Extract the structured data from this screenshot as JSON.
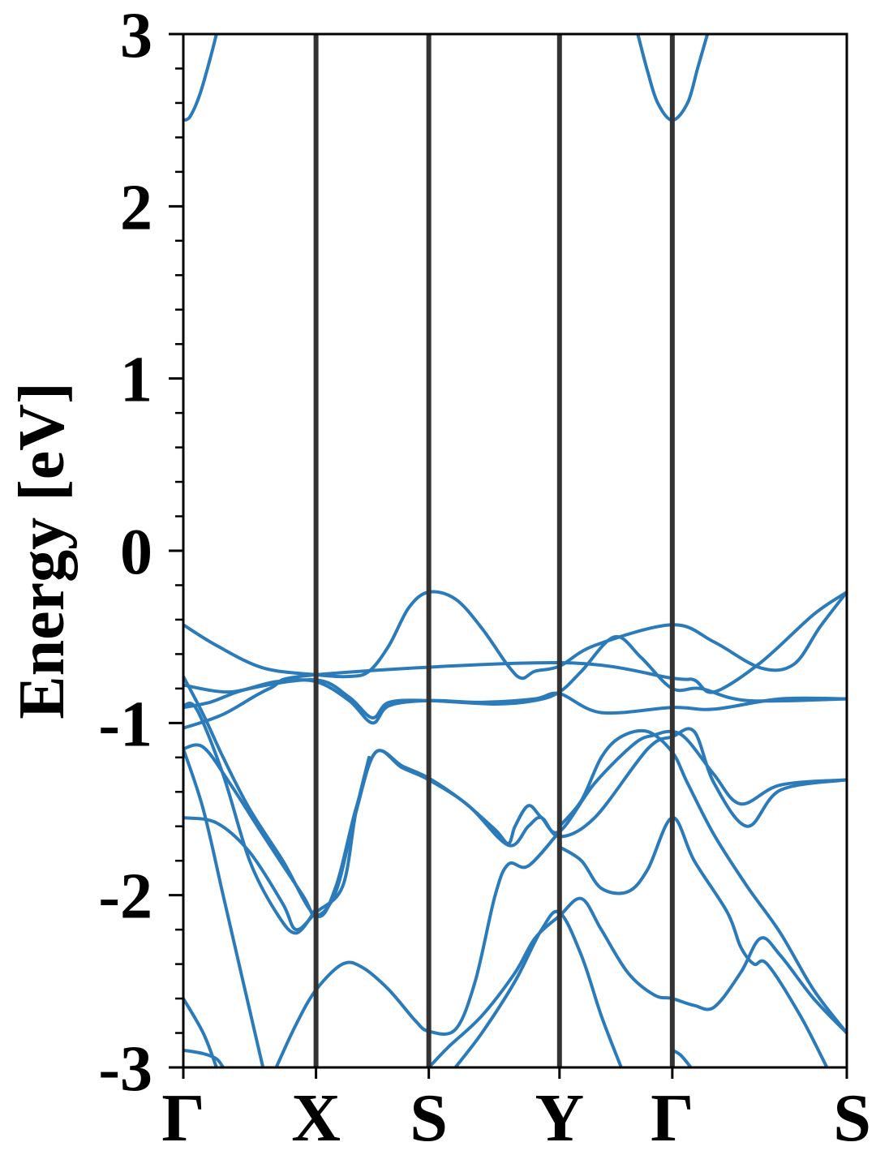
{
  "chart_data": {
    "type": "line",
    "title": "",
    "xlabel": "",
    "ylabel": "Energy [eV]",
    "ylim": [
      -3,
      3
    ],
    "y_ticks": [
      "3",
      "2",
      "1",
      "0",
      "-1",
      "-2",
      "-3"
    ],
    "high_symmetry_points": [
      {
        "label": "Γ",
        "x": 0.0
      },
      {
        "label": "X",
        "x": 0.2
      },
      {
        "label": "S",
        "x": 0.37
      },
      {
        "label": "Y",
        "x": 0.567
      },
      {
        "label": "Γ",
        "x": 0.737
      },
      {
        "label": "S",
        "x": 1.0
      }
    ],
    "line_color": "#2b7bba",
    "separator_color": "#333333",
    "grid": false,
    "series": [
      {
        "values": [
          [
            0.0,
            2.5
          ],
          [
            0.01,
            2.52
          ],
          [
            0.025,
            2.65
          ],
          [
            0.04,
            2.85
          ],
          [
            0.05,
            3.0
          ]
        ]
      },
      {
        "values": [
          [
            0.685,
            3.0
          ],
          [
            0.7,
            2.78
          ],
          [
            0.715,
            2.6
          ],
          [
            0.737,
            2.5
          ],
          [
            0.76,
            2.6
          ],
          [
            0.775,
            2.8
          ],
          [
            0.79,
            3.0
          ]
        ]
      },
      {
        "values": [
          [
            0.0,
            -0.43
          ],
          [
            0.05,
            -0.55
          ],
          [
            0.12,
            -0.68
          ],
          [
            0.2,
            -0.72
          ],
          [
            0.25,
            -0.73
          ],
          [
            0.28,
            -0.7
          ],
          [
            0.31,
            -0.55
          ],
          [
            0.34,
            -0.33
          ],
          [
            0.37,
            -0.24
          ],
          [
            0.41,
            -0.28
          ],
          [
            0.45,
            -0.45
          ],
          [
            0.49,
            -0.67
          ],
          [
            0.51,
            -0.74
          ],
          [
            0.53,
            -0.7
          ],
          [
            0.567,
            -0.67
          ],
          [
            0.62,
            -0.55
          ],
          [
            0.737,
            -0.43
          ],
          [
            0.8,
            -0.53
          ],
          [
            0.87,
            -0.68
          ],
          [
            0.92,
            -0.66
          ],
          [
            0.96,
            -0.44
          ],
          [
            1.0,
            -0.24
          ]
        ]
      },
      {
        "values": [
          [
            0.0,
            -0.78
          ],
          [
            0.07,
            -0.82
          ],
          [
            0.14,
            -0.76
          ],
          [
            0.2,
            -0.76
          ],
          [
            0.25,
            -0.87
          ],
          [
            0.285,
            -1.0
          ],
          [
            0.31,
            -0.9
          ],
          [
            0.37,
            -0.87
          ],
          [
            0.45,
            -0.88
          ],
          [
            0.53,
            -0.86
          ],
          [
            0.567,
            -0.83
          ],
          [
            0.63,
            -0.94
          ],
          [
            0.737,
            -0.91
          ],
          [
            0.8,
            -0.92
          ],
          [
            0.9,
            -0.86
          ],
          [
            1.0,
            -0.86
          ]
        ]
      },
      {
        "values": [
          [
            0.0,
            -0.91
          ],
          [
            0.04,
            -0.88
          ],
          [
            0.1,
            -0.8
          ],
          [
            0.2,
            -0.75
          ],
          [
            0.25,
            -0.85
          ],
          [
            0.285,
            -0.97
          ],
          [
            0.31,
            -0.88
          ],
          [
            0.37,
            -0.87
          ],
          [
            0.47,
            -0.89
          ],
          [
            0.53,
            -0.87
          ],
          [
            0.567,
            -0.82
          ],
          [
            0.6,
            -0.7
          ],
          [
            0.65,
            -0.5
          ],
          [
            0.69,
            -0.62
          ],
          [
            0.737,
            -0.8
          ],
          [
            0.78,
            -0.8
          ],
          [
            0.85,
            -0.87
          ],
          [
            1.0,
            -0.86
          ]
        ]
      },
      {
        "values": [
          [
            0.0,
            -1.03
          ],
          [
            0.06,
            -0.95
          ],
          [
            0.13,
            -0.8
          ],
          [
            0.2,
            -0.72
          ],
          [
            0.567,
            -0.65
          ],
          [
            0.737,
            -0.74
          ],
          [
            0.77,
            -0.75
          ],
          [
            0.8,
            -0.82
          ],
          [
            0.87,
            -0.65
          ],
          [
            0.95,
            -0.37
          ],
          [
            1.0,
            -0.24
          ]
        ]
      },
      {
        "values": [
          [
            0.0,
            -0.73
          ],
          [
            0.03,
            -0.95
          ],
          [
            0.06,
            -1.2
          ],
          [
            0.1,
            -1.5
          ],
          [
            0.15,
            -1.8
          ],
          [
            0.2,
            -2.12
          ],
          [
            0.23,
            -1.95
          ],
          [
            0.26,
            -1.5
          ],
          [
            0.29,
            -1.17
          ],
          [
            0.33,
            -1.25
          ],
          [
            0.37,
            -1.32
          ],
          [
            0.42,
            -1.45
          ],
          [
            0.47,
            -1.62
          ],
          [
            0.49,
            -1.7
          ],
          [
            0.5,
            -1.6
          ],
          [
            0.52,
            -1.48
          ],
          [
            0.54,
            -1.55
          ],
          [
            0.567,
            -1.63
          ],
          [
            0.62,
            -1.35
          ],
          [
            0.68,
            -1.12
          ],
          [
            0.71,
            -1.07
          ],
          [
            0.737,
            -1.05
          ],
          [
            0.76,
            -1.1
          ],
          [
            0.8,
            -1.3
          ],
          [
            0.84,
            -1.47
          ],
          [
            0.9,
            -1.36
          ],
          [
            1.0,
            -1.33
          ]
        ]
      },
      {
        "values": [
          [
            0.0,
            -1.15
          ],
          [
            0.03,
            -1.14
          ],
          [
            0.07,
            -1.35
          ],
          [
            0.12,
            -1.65
          ],
          [
            0.18,
            -2.0
          ],
          [
            0.2,
            -2.12
          ],
          [
            0.23,
            -1.98
          ],
          [
            0.26,
            -1.52
          ],
          [
            0.29,
            -1.17
          ],
          [
            0.33,
            -1.26
          ],
          [
            0.37,
            -1.33
          ],
          [
            0.43,
            -1.48
          ],
          [
            0.49,
            -1.71
          ],
          [
            0.52,
            -1.6
          ],
          [
            0.54,
            -1.55
          ],
          [
            0.567,
            -1.66
          ],
          [
            0.62,
            -1.55
          ],
          [
            0.7,
            -1.15
          ],
          [
            0.737,
            -1.08
          ],
          [
            0.77,
            -1.05
          ],
          [
            0.8,
            -1.35
          ],
          [
            0.85,
            -1.6
          ],
          [
            0.9,
            -1.39
          ],
          [
            1.0,
            -1.33
          ]
        ]
      },
      {
        "values": [
          [
            0.0,
            -1.55
          ],
          [
            0.05,
            -1.58
          ],
          [
            0.1,
            -1.75
          ],
          [
            0.15,
            -2.05
          ],
          [
            0.17,
            -2.2
          ],
          [
            0.2,
            -2.1
          ],
          [
            0.24,
            -1.95
          ],
          [
            0.26,
            -1.52
          ],
          [
            0.28,
            -1.2
          ]
        ]
      },
      {
        "values": [
          [
            0.0,
            -0.9
          ],
          [
            0.02,
            -0.92
          ],
          [
            0.06,
            -1.3
          ],
          [
            0.1,
            -1.8
          ],
          [
            0.14,
            -2.1
          ],
          [
            0.17,
            -2.22
          ],
          [
            0.2,
            -2.08
          ]
        ]
      },
      {
        "values": [
          [
            0.0,
            -1.15
          ],
          [
            0.03,
            -1.5
          ],
          [
            0.06,
            -2.0
          ],
          [
            0.09,
            -2.5
          ],
          [
            0.12,
            -3.0
          ]
        ]
      },
      {
        "values": [
          [
            0.0,
            -2.6
          ],
          [
            0.03,
            -2.8
          ],
          [
            0.05,
            -3.0
          ]
        ]
      },
      {
        "values": [
          [
            0.0,
            -2.9
          ],
          [
            0.03,
            -2.92
          ],
          [
            0.05,
            -2.95
          ],
          [
            0.06,
            -3.0
          ]
        ]
      },
      {
        "values": [
          [
            0.14,
            -3.0
          ],
          [
            0.17,
            -2.75
          ],
          [
            0.2,
            -2.55
          ],
          [
            0.24,
            -2.4
          ],
          [
            0.27,
            -2.42
          ],
          [
            0.31,
            -2.55
          ],
          [
            0.35,
            -2.73
          ],
          [
            0.37,
            -2.79
          ],
          [
            0.41,
            -2.78
          ],
          [
            0.44,
            -2.5
          ],
          [
            0.47,
            -2.0
          ],
          [
            0.49,
            -1.82
          ],
          [
            0.52,
            -1.83
          ],
          [
            0.567,
            -1.63
          ]
        ]
      },
      {
        "values": [
          [
            0.37,
            -3.0
          ],
          [
            0.4,
            -2.88
          ],
          [
            0.45,
            -2.7
          ],
          [
            0.5,
            -2.45
          ],
          [
            0.53,
            -2.25
          ],
          [
            0.567,
            -2.12
          ],
          [
            0.6,
            -2.02
          ],
          [
            0.63,
            -2.2
          ],
          [
            0.67,
            -2.45
          ],
          [
            0.71,
            -2.58
          ],
          [
            0.737,
            -2.6
          ],
          [
            0.77,
            -2.64
          ],
          [
            0.8,
            -2.65
          ],
          [
            0.84,
            -2.45
          ],
          [
            0.87,
            -2.25
          ],
          [
            0.9,
            -2.35
          ],
          [
            0.95,
            -2.6
          ],
          [
            1.0,
            -2.8
          ]
        ]
      },
      {
        "values": [
          [
            0.41,
            -3.0
          ],
          [
            0.45,
            -2.8
          ],
          [
            0.5,
            -2.5
          ],
          [
            0.54,
            -2.2
          ],
          [
            0.567,
            -2.1
          ],
          [
            0.6,
            -2.35
          ],
          [
            0.63,
            -2.7
          ],
          [
            0.66,
            -3.0
          ]
        ]
      },
      {
        "values": [
          [
            0.567,
            -1.72
          ],
          [
            0.6,
            -1.8
          ],
          [
            0.63,
            -1.96
          ],
          [
            0.67,
            -1.98
          ],
          [
            0.7,
            -1.85
          ],
          [
            0.737,
            -1.55
          ],
          [
            0.77,
            -1.8
          ],
          [
            0.82,
            -2.1
          ],
          [
            0.84,
            -2.3
          ],
          [
            0.86,
            -2.4
          ],
          [
            0.88,
            -2.4
          ],
          [
            0.93,
            -2.7
          ],
          [
            0.97,
            -3.0
          ]
        ]
      },
      {
        "values": [
          [
            0.567,
            -1.6
          ],
          [
            0.6,
            -1.45
          ],
          [
            0.63,
            -1.2
          ],
          [
            0.66,
            -1.08
          ],
          [
            0.7,
            -1.05
          ],
          [
            0.737,
            -1.17
          ],
          [
            0.76,
            -1.35
          ],
          [
            0.8,
            -1.65
          ],
          [
            0.85,
            -1.95
          ],
          [
            0.9,
            -2.22
          ],
          [
            0.95,
            -2.55
          ],
          [
            1.0,
            -2.8
          ]
        ]
      },
      {
        "values": [
          [
            0.737,
            -2.9
          ],
          [
            0.75,
            -2.93
          ],
          [
            0.765,
            -3.0
          ]
        ]
      }
    ]
  }
}
